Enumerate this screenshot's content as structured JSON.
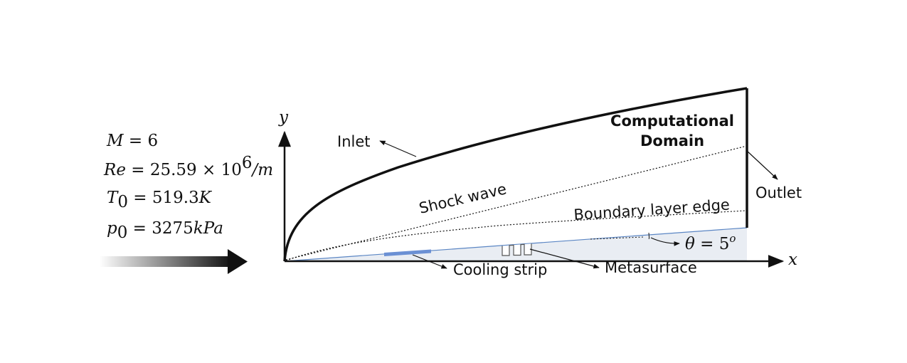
{
  "labels": {
    "title_line1": "Computational",
    "title_line2": "Domain",
    "inlet": "Inlet",
    "outlet": "Outlet",
    "shock_wave": "Shock wave",
    "boundary_layer_edge": "Boundary layer edge",
    "cooling_strip": "Cooling strip",
    "metasurface": "Metasurface",
    "axis_x": "x",
    "axis_y": "y"
  },
  "conditions": {
    "mach": {
      "var": "M",
      "eq": " = 6"
    },
    "reynolds": {
      "var": "Re",
      "eq": " = 25.59 × 10",
      "exp": "6",
      "unit": "/m"
    },
    "temperature": {
      "var": "T",
      "sub": "0",
      "eq": " = 519.3",
      "unit": "K"
    },
    "pressure": {
      "var": "p",
      "sub": "0",
      "eq": " = 3275",
      "unit": "kPa"
    }
  },
  "angle": {
    "symbol": "θ",
    "eq": " = 5",
    "sup": "o"
  },
  "colors": {
    "wedge_fill": "#e9edf3",
    "wedge_edge": "#5b86c4",
    "cooling_strip": "#6b90d4",
    "arrow_dark": "#111111"
  }
}
